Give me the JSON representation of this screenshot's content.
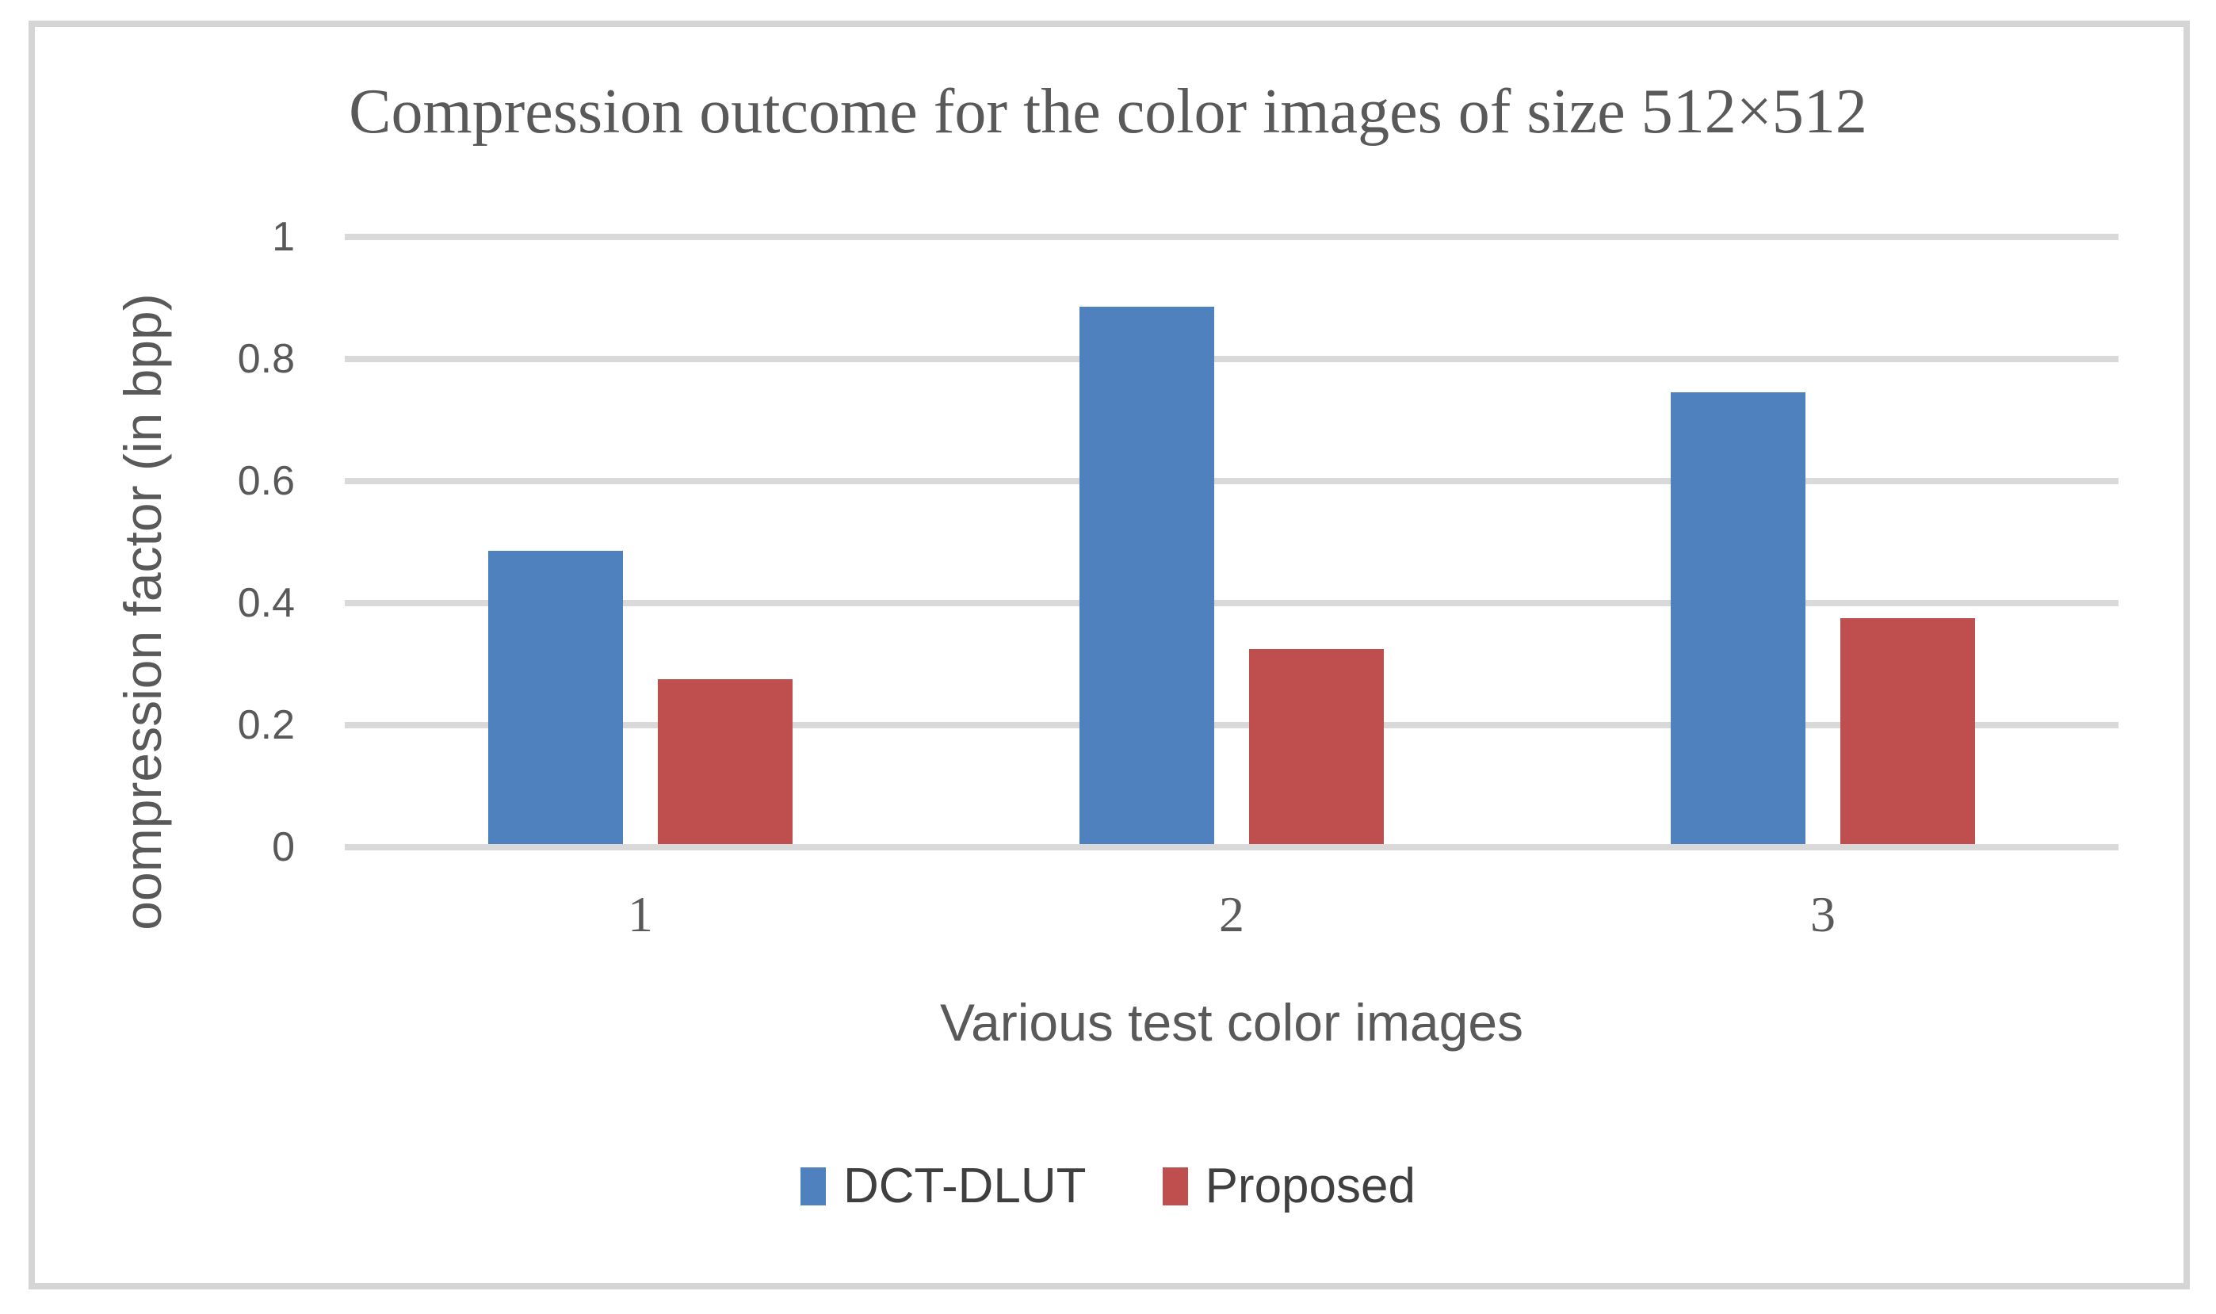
{
  "figure": {
    "frame_border_color": "#d5d5d5",
    "background_color": "#ffffff"
  },
  "chart_data": {
    "type": "bar",
    "title": "Compression outcome for the color images of size 512×512",
    "categories": [
      "1",
      "2",
      "3"
    ],
    "series": [
      {
        "name": "DCT-DLUT",
        "color": "#4E81BD",
        "values": [
          0.48,
          0.88,
          0.74
        ]
      },
      {
        "name": "Proposed",
        "color": "#BF4F4F",
        "values": [
          0.27,
          0.32,
          0.37
        ]
      }
    ],
    "xlabel": "Various test color images",
    "ylabel": "oompression factor (in bpp)",
    "ylim": [
      0,
      1
    ],
    "ytick_labels": [
      "1",
      "0.8",
      "0.6",
      "0.4",
      "0.2",
      "0"
    ],
    "ytick_values": [
      1,
      0.8,
      0.6,
      0.4,
      0.2,
      0
    ],
    "grid": true,
    "gridline_color": "#d9d9d9",
    "legend_position": "bottom",
    "text_color": "#595959"
  }
}
